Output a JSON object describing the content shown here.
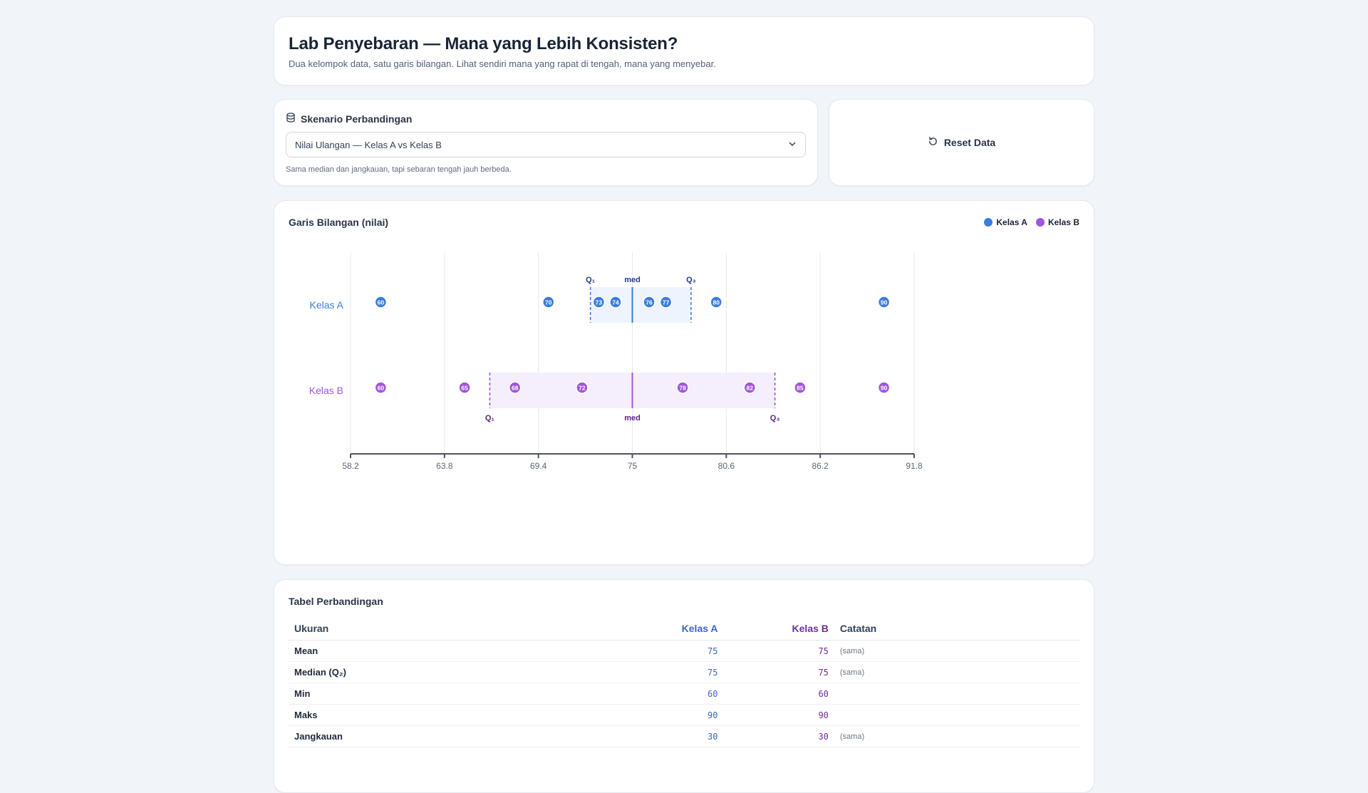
{
  "header": {
    "title": "Lab Penyebaran — Mana yang Lebih Konsisten?",
    "subtitle": "Dua kelompok data, satu garis bilangan. Lihat sendiri mana yang rapat di tengah, mana yang menyebar."
  },
  "scenario": {
    "label": "Skenario Perbandingan",
    "selected": "Nilai Ulangan — Kelas A vs Kelas B",
    "note": "Sama median dan jangkauan, tapi sebaran tengah jauh berbeda."
  },
  "reset": {
    "label": "Reset Data"
  },
  "colors": {
    "kelas_a": "#3b7ddd",
    "kelas_b": "#a155dc"
  },
  "chart": {
    "title": "Garis Bilangan (nilai)",
    "legend": [
      "Kelas A",
      "Kelas B"
    ]
  },
  "chart_data": {
    "type": "scatter",
    "xlim": [
      58.2,
      91.8
    ],
    "ticks": [
      "58.2",
      "63.8",
      "69.4",
      "75",
      "80.6",
      "86.2",
      "91.8"
    ],
    "series": [
      {
        "name": "Kelas A",
        "values": [
          60,
          70,
          73,
          74,
          76,
          77,
          80,
          90
        ],
        "q1": 72.5,
        "median": 75,
        "q3": 78.5
      },
      {
        "name": "Kelas B",
        "values": [
          60,
          65,
          68,
          72,
          78,
          82,
          85,
          90
        ],
        "q1": 66.5,
        "median": 75,
        "q3": 83.5
      }
    ],
    "marker_labels": {
      "q1": "Q₁",
      "median": "med",
      "q3": "Q₃"
    }
  },
  "table": {
    "title": "Tabel Perbandingan",
    "headers": [
      "Ukuran",
      "Kelas A",
      "Kelas B",
      "Catatan"
    ],
    "rows": [
      {
        "metric": "Mean",
        "a": "75",
        "b": "75",
        "note": "(sama)"
      },
      {
        "metric": "Median (Q₂)",
        "a": "75",
        "b": "75",
        "note": "(sama)"
      },
      {
        "metric": "Min",
        "a": "60",
        "b": "60",
        "note": ""
      },
      {
        "metric": "Maks",
        "a": "90",
        "b": "90",
        "note": ""
      },
      {
        "metric": "Jangkauan",
        "a": "30",
        "b": "30",
        "note": "(sama)"
      }
    ]
  }
}
